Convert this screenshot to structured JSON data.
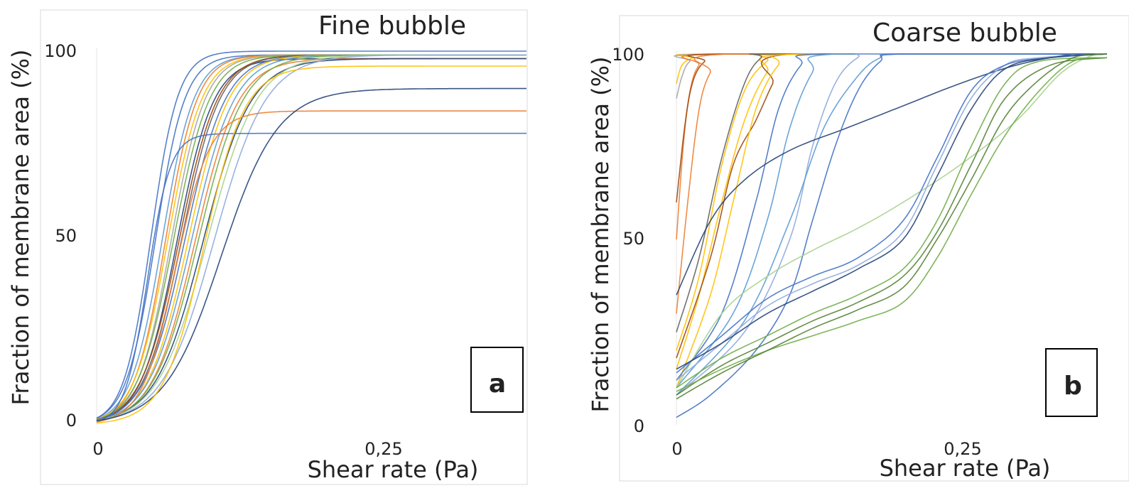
{
  "chart_data": [
    {
      "type": "line",
      "panel_label": "a",
      "title": "Fine bubble",
      "xlabel": "Shear rate (Pa)",
      "ylabel": "Fraction of membrane area (%)",
      "xticks": [
        "0",
        "0,25"
      ],
      "yticks": [
        "0",
        "50",
        "100"
      ],
      "xlim": [
        0,
        0.38
      ],
      "ylim": [
        0,
        100
      ],
      "grid": false,
      "legend": "none",
      "series": [
        {
          "color": "#4472c4",
          "x50": 0.048,
          "w": 0.012,
          "ymin": 0,
          "ymax": 100
        },
        {
          "color": "#4472c4",
          "x50": 0.052,
          "w": 0.013,
          "ymin": 0,
          "ymax": 99
        },
        {
          "color": "#5b9bd5",
          "x50": 0.058,
          "w": 0.014,
          "ymin": 0,
          "ymax": 99
        },
        {
          "color": "#ed7d31",
          "x50": 0.061,
          "w": 0.014,
          "ymin": 0,
          "ymax": 99
        },
        {
          "color": "#ffc000",
          "x50": 0.063,
          "w": 0.015,
          "ymin": 0,
          "ymax": 99
        },
        {
          "color": "#a5a5a5",
          "x50": 0.066,
          "w": 0.015,
          "ymin": 0,
          "ymax": 99
        },
        {
          "color": "#70ad47",
          "x50": 0.068,
          "w": 0.016,
          "ymin": 0,
          "ymax": 99
        },
        {
          "color": "#264478",
          "x50": 0.071,
          "w": 0.016,
          "ymin": 0,
          "ymax": 98
        },
        {
          "color": "#9e480e",
          "x50": 0.073,
          "w": 0.017,
          "ymin": 0,
          "ymax": 99
        },
        {
          "color": "#636363",
          "x50": 0.075,
          "w": 0.017,
          "ymin": 0,
          "ymax": 99
        },
        {
          "color": "#4472c4",
          "x50": 0.078,
          "w": 0.018,
          "ymin": 0,
          "ymax": 99
        },
        {
          "color": "#ffc000",
          "x50": 0.081,
          "w": 0.018,
          "ymin": 0,
          "ymax": 99
        },
        {
          "color": "#5b9bd5",
          "x50": 0.084,
          "w": 0.019,
          "ymin": 0,
          "ymax": 99
        },
        {
          "color": "#ed7d31",
          "x50": 0.087,
          "w": 0.019,
          "ymin": 0,
          "ymax": 98
        },
        {
          "color": "#70ad47",
          "x50": 0.09,
          "w": 0.02,
          "ymin": 0,
          "ymax": 99
        },
        {
          "color": "#264478",
          "x50": 0.094,
          "w": 0.021,
          "ymin": 0,
          "ymax": 98
        },
        {
          "color": "#a9d18e",
          "x50": 0.098,
          "w": 0.022,
          "ymin": 0,
          "ymax": 99
        },
        {
          "color": "#8faadc",
          "x50": 0.104,
          "w": 0.023,
          "ymin": 0,
          "ymax": 99
        },
        {
          "color": "#4472c4",
          "x50": 0.045,
          "w": 0.01,
          "ymin": 0,
          "ymax": 78
        },
        {
          "color": "#ed7d31",
          "x50": 0.07,
          "w": 0.015,
          "ymin": 0,
          "ymax": 84
        },
        {
          "color": "#264478",
          "x50": 0.11,
          "w": 0.025,
          "ymin": 0,
          "ymax": 90
        },
        {
          "color": "#ffc000",
          "x50": 0.095,
          "w": 0.018,
          "ymin": 0,
          "ymax": 96
        }
      ]
    },
    {
      "type": "line",
      "panel_label": "b",
      "title": "Coarse bubble",
      "xlabel": "Shear rate (Pa)",
      "ylabel": "Fraction of membrane area (%)",
      "xticks": [
        "0",
        "0,25"
      ],
      "yticks": [
        "0",
        "50",
        "100"
      ],
      "xlim": [
        0,
        0.38
      ],
      "ylim": [
        0,
        100
      ],
      "grid": false,
      "legend": "none",
      "series": [
        {
          "color": "#ffc000",
          "points": [
            [
              0,
              92
            ],
            [
              0.005,
              97
            ],
            [
              0.015,
              99
            ],
            [
              0.03,
              100
            ],
            [
              0.38,
              100
            ]
          ]
        },
        {
          "color": "#a5a5a5",
          "points": [
            [
              0,
              88
            ],
            [
              0.005,
              94
            ],
            [
              0.012,
              98
            ],
            [
              0.03,
              100
            ],
            [
              0.38,
              100
            ]
          ]
        },
        {
          "color": "#ed7d31",
          "points": [
            [
              0,
              50
            ],
            [
              0.006,
              75
            ],
            [
              0.012,
              90
            ],
            [
              0.02,
              97
            ],
            [
              0.035,
              100
            ],
            [
              0.38,
              100
            ]
          ]
        },
        {
          "color": "#9e480e",
          "points": [
            [
              0,
              60
            ],
            [
              0.008,
              82
            ],
            [
              0.015,
              93
            ],
            [
              0.025,
              98
            ],
            [
              0.04,
              100
            ],
            [
              0.38,
              100
            ]
          ]
        },
        {
          "color": "#ed7d31",
          "points": [
            [
              0,
              30
            ],
            [
              0.01,
              60
            ],
            [
              0.02,
              85
            ],
            [
              0.03,
              95
            ],
            [
              0.045,
              100
            ],
            [
              0.38,
              100
            ]
          ]
        },
        {
          "color": "#ffc000",
          "points": [
            [
              0,
              20
            ],
            [
              0.02,
              40
            ],
            [
              0.04,
              70
            ],
            [
              0.06,
              90
            ],
            [
              0.08,
              98
            ],
            [
              0.1,
              100
            ],
            [
              0.38,
              100
            ]
          ]
        },
        {
          "color": "#ffc000",
          "points": [
            [
              0,
              15
            ],
            [
              0.02,
              35
            ],
            [
              0.04,
              60
            ],
            [
              0.06,
              82
            ],
            [
              0.08,
              95
            ],
            [
              0.1,
              100
            ],
            [
              0.38,
              100
            ]
          ]
        },
        {
          "color": "#636363",
          "points": [
            [
              0,
              25
            ],
            [
              0.02,
              45
            ],
            [
              0.04,
              72
            ],
            [
              0.06,
              92
            ],
            [
              0.075,
              99
            ],
            [
              0.09,
              100
            ],
            [
              0.38,
              100
            ]
          ]
        },
        {
          "color": "#9e480e",
          "points": [
            [
              0,
              18
            ],
            [
              0.03,
              45
            ],
            [
              0.05,
              70
            ],
            [
              0.07,
              82
            ],
            [
              0.085,
              92
            ],
            [
              0.1,
              100
            ],
            [
              0.38,
              100
            ]
          ]
        },
        {
          "color": "#ffc000",
          "points": [
            [
              0,
              10
            ],
            [
              0.03,
              35
            ],
            [
              0.05,
              60
            ],
            [
              0.07,
              85
            ],
            [
              0.09,
              97
            ],
            [
              0.11,
              100
            ],
            [
              0.38,
              100
            ]
          ]
        },
        {
          "color": "#4472c4",
          "points": [
            [
              0,
              12
            ],
            [
              0.04,
              30
            ],
            [
              0.07,
              60
            ],
            [
              0.09,
              85
            ],
            [
              0.11,
              97
            ],
            [
              0.13,
              100
            ],
            [
              0.38,
              100
            ]
          ]
        },
        {
          "color": "#5b9bd5",
          "points": [
            [
              0,
              10
            ],
            [
              0.05,
              30
            ],
            [
              0.08,
              55
            ],
            [
              0.1,
              80
            ],
            [
              0.12,
              95
            ],
            [
              0.14,
              100
            ],
            [
              0.38,
              100
            ]
          ]
        },
        {
          "color": "#8faadc",
          "points": [
            [
              0,
              8
            ],
            [
              0.06,
              25
            ],
            [
              0.1,
              50
            ],
            [
              0.12,
              75
            ],
            [
              0.14,
              92
            ],
            [
              0.16,
              99
            ],
            [
              0.18,
              100
            ],
            [
              0.38,
              100
            ]
          ]
        },
        {
          "color": "#5b9bd5",
          "points": [
            [
              0,
              8
            ],
            [
              0.06,
              28
            ],
            [
              0.1,
              55
            ],
            [
              0.13,
              80
            ],
            [
              0.16,
              94
            ],
            [
              0.18,
              99
            ],
            [
              0.2,
              100
            ],
            [
              0.38,
              100
            ]
          ]
        },
        {
          "color": "#264478",
          "points": [
            [
              0,
              35
            ],
            [
              0.03,
              55
            ],
            [
              0.06,
              66
            ],
            [
              0.1,
              74
            ],
            [
              0.15,
              80
            ],
            [
              0.2,
              86
            ],
            [
              0.25,
              92
            ],
            [
              0.3,
              97
            ],
            [
              0.35,
              100
            ],
            [
              0.38,
              100
            ]
          ]
        },
        {
          "color": "#4472c4",
          "points": [
            [
              0,
              2
            ],
            [
              0.03,
              8
            ],
            [
              0.07,
              20
            ],
            [
              0.1,
              35
            ],
            [
              0.12,
              55
            ],
            [
              0.14,
              75
            ],
            [
              0.16,
              90
            ],
            [
              0.18,
              98
            ],
            [
              0.2,
              100
            ],
            [
              0.38,
              100
            ]
          ]
        },
        {
          "color": "#a9d18e",
          "points": [
            [
              0,
              10
            ],
            [
              0.04,
              30
            ],
            [
              0.08,
              40
            ],
            [
              0.12,
              47
            ],
            [
              0.16,
              53
            ],
            [
              0.2,
              60
            ],
            [
              0.25,
              70
            ],
            [
              0.3,
              82
            ],
            [
              0.34,
              95
            ],
            [
              0.37,
              100
            ],
            [
              0.38,
              100
            ]
          ]
        },
        {
          "color": "#8faadc",
          "points": [
            [
              0,
              12
            ],
            [
              0.04,
              22
            ],
            [
              0.08,
              32
            ],
            [
              0.12,
              38
            ],
            [
              0.16,
              43
            ],
            [
              0.2,
              52
            ],
            [
              0.23,
              70
            ],
            [
              0.26,
              88
            ],
            [
              0.29,
              97
            ],
            [
              0.32,
              99
            ],
            [
              0.38,
              100
            ]
          ]
        },
        {
          "color": "#4472c4",
          "points": [
            [
              0,
              14
            ],
            [
              0.04,
              24
            ],
            [
              0.08,
              34
            ],
            [
              0.12,
              40
            ],
            [
              0.16,
              45
            ],
            [
              0.2,
              55
            ],
            [
              0.23,
              72
            ],
            [
              0.26,
              90
            ],
            [
              0.29,
              97
            ],
            [
              0.33,
              99
            ],
            [
              0.38,
              100
            ]
          ]
        },
        {
          "color": "#264478",
          "points": [
            [
              0,
              15
            ],
            [
              0.04,
              22
            ],
            [
              0.08,
              30
            ],
            [
              0.12,
              36
            ],
            [
              0.16,
              42
            ],
            [
              0.2,
              50
            ],
            [
              0.23,
              67
            ],
            [
              0.26,
              85
            ],
            [
              0.29,
              96
            ],
            [
              0.33,
              99
            ],
            [
              0.38,
              100
            ]
          ]
        },
        {
          "color": "#70ad47",
          "points": [
            [
              0,
              10
            ],
            [
              0.04,
              18
            ],
            [
              0.08,
              24
            ],
            [
              0.12,
              30
            ],
            [
              0.16,
              35
            ],
            [
              0.2,
              42
            ],
            [
              0.23,
              55
            ],
            [
              0.26,
              75
            ],
            [
              0.29,
              92
            ],
            [
              0.32,
              98
            ],
            [
              0.38,
              99
            ]
          ]
        },
        {
          "color": "#548235",
          "points": [
            [
              0,
              8
            ],
            [
              0.04,
              16
            ],
            [
              0.08,
              22
            ],
            [
              0.12,
              28
            ],
            [
              0.16,
              33
            ],
            [
              0.2,
              40
            ],
            [
              0.23,
              52
            ],
            [
              0.26,
              70
            ],
            [
              0.29,
              88
            ],
            [
              0.33,
              97
            ],
            [
              0.38,
              99
            ]
          ]
        },
        {
          "color": "#70ad47",
          "points": [
            [
              0,
              9
            ],
            [
              0.04,
              15
            ],
            [
              0.08,
              20
            ],
            [
              0.12,
              24
            ],
            [
              0.16,
              28
            ],
            [
              0.2,
              33
            ],
            [
              0.23,
              45
            ],
            [
              0.26,
              62
            ],
            [
              0.29,
              78
            ],
            [
              0.32,
              90
            ],
            [
              0.35,
              98
            ],
            [
              0.38,
              99
            ]
          ]
        },
        {
          "color": "#548235",
          "points": [
            [
              0,
              7
            ],
            [
              0.04,
              14
            ],
            [
              0.08,
              20
            ],
            [
              0.12,
              26
            ],
            [
              0.16,
              31
            ],
            [
              0.2,
              37
            ],
            [
              0.23,
              50
            ],
            [
              0.26,
              66
            ],
            [
              0.29,
              83
            ],
            [
              0.32,
              93
            ],
            [
              0.35,
              99
            ],
            [
              0.38,
              100
            ]
          ]
        }
      ]
    }
  ]
}
